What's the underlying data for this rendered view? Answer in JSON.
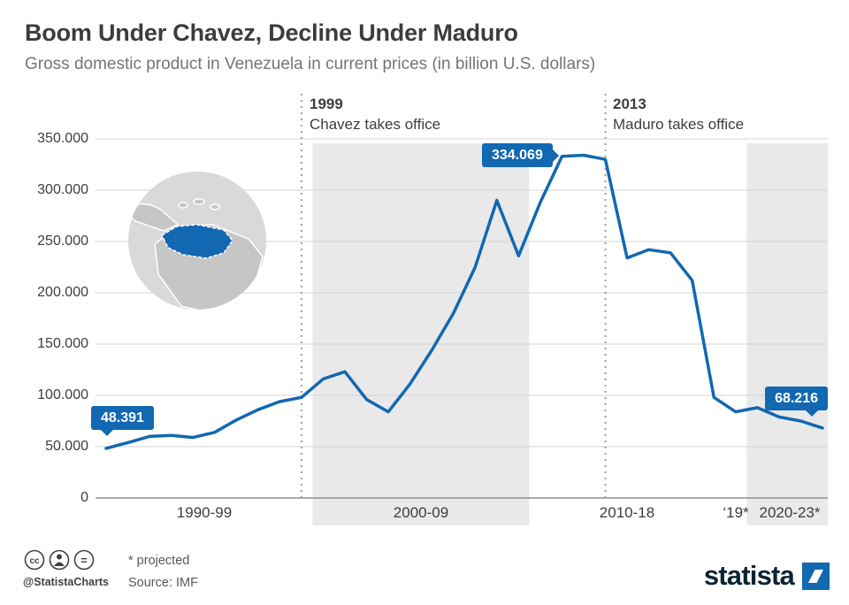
{
  "header": {
    "title": "Boom Under Chavez, Decline Under Maduro",
    "subtitle": "Gross domestic product in Venezuela in current prices (in billion U.S. dollars)"
  },
  "chart_data": {
    "type": "line",
    "title": "Boom Under Chavez, Decline Under Maduro",
    "ylabel": "GDP in billion U.S. dollars",
    "ylim": [
      0,
      350
    ],
    "line_color": "#1268b1",
    "band_color": "#e9e9e9",
    "grid": true,
    "x": [
      1990,
      1991,
      1992,
      1993,
      1994,
      1995,
      1996,
      1997,
      1998,
      1999,
      2000,
      2001,
      2002,
      2003,
      2004,
      2005,
      2006,
      2007,
      2008,
      2009,
      2010,
      2011,
      2012,
      2013,
      2014,
      2015,
      2016,
      2017,
      2018,
      2019,
      2020,
      2021,
      2022,
      2023
    ],
    "values": [
      48.391,
      54,
      60,
      61,
      59,
      64,
      76,
      86,
      94,
      98,
      116,
      123,
      96,
      84,
      111,
      144,
      180,
      225,
      290,
      236,
      288,
      333,
      334.069,
      330,
      234,
      242,
      239,
      212,
      98,
      84,
      88,
      79,
      75,
      68.216
    ],
    "ytick_values": [
      350,
      300,
      250,
      200,
      150,
      100,
      50,
      0
    ],
    "ytick_labels": [
      "350.000",
      "300.000",
      "250.000",
      "200.000",
      "150.000",
      "100.000",
      "50.000",
      "0"
    ],
    "xtick_labels": [
      "1990-99",
      "2000-09",
      "2010-18",
      "‘19*",
      "2020-23*"
    ],
    "shaded_ranges": [
      [
        2000,
        2009
      ],
      [
        2020,
        2023
      ]
    ],
    "annotations": [
      {
        "year": "1999",
        "text": "Chavez takes office",
        "x_year": 1999
      },
      {
        "year": "2013",
        "text": "Maduro takes office",
        "x_year": 2013
      }
    ],
    "data_labels": [
      {
        "value": "48.391",
        "year": 1990
      },
      {
        "value": "334.069",
        "year": 2012
      },
      {
        "value": "68.216",
        "year": 2023
      }
    ]
  },
  "footer": {
    "projected_note": "* projected",
    "source": "Source: IMF",
    "handle": "@StatistaCharts",
    "brand": "statista"
  },
  "icons": {
    "map": "venezuela-highlighted-on-south-america",
    "license": "cc-attribution-noderivatives",
    "brand_mark": "blue-square-with-white-slash"
  }
}
